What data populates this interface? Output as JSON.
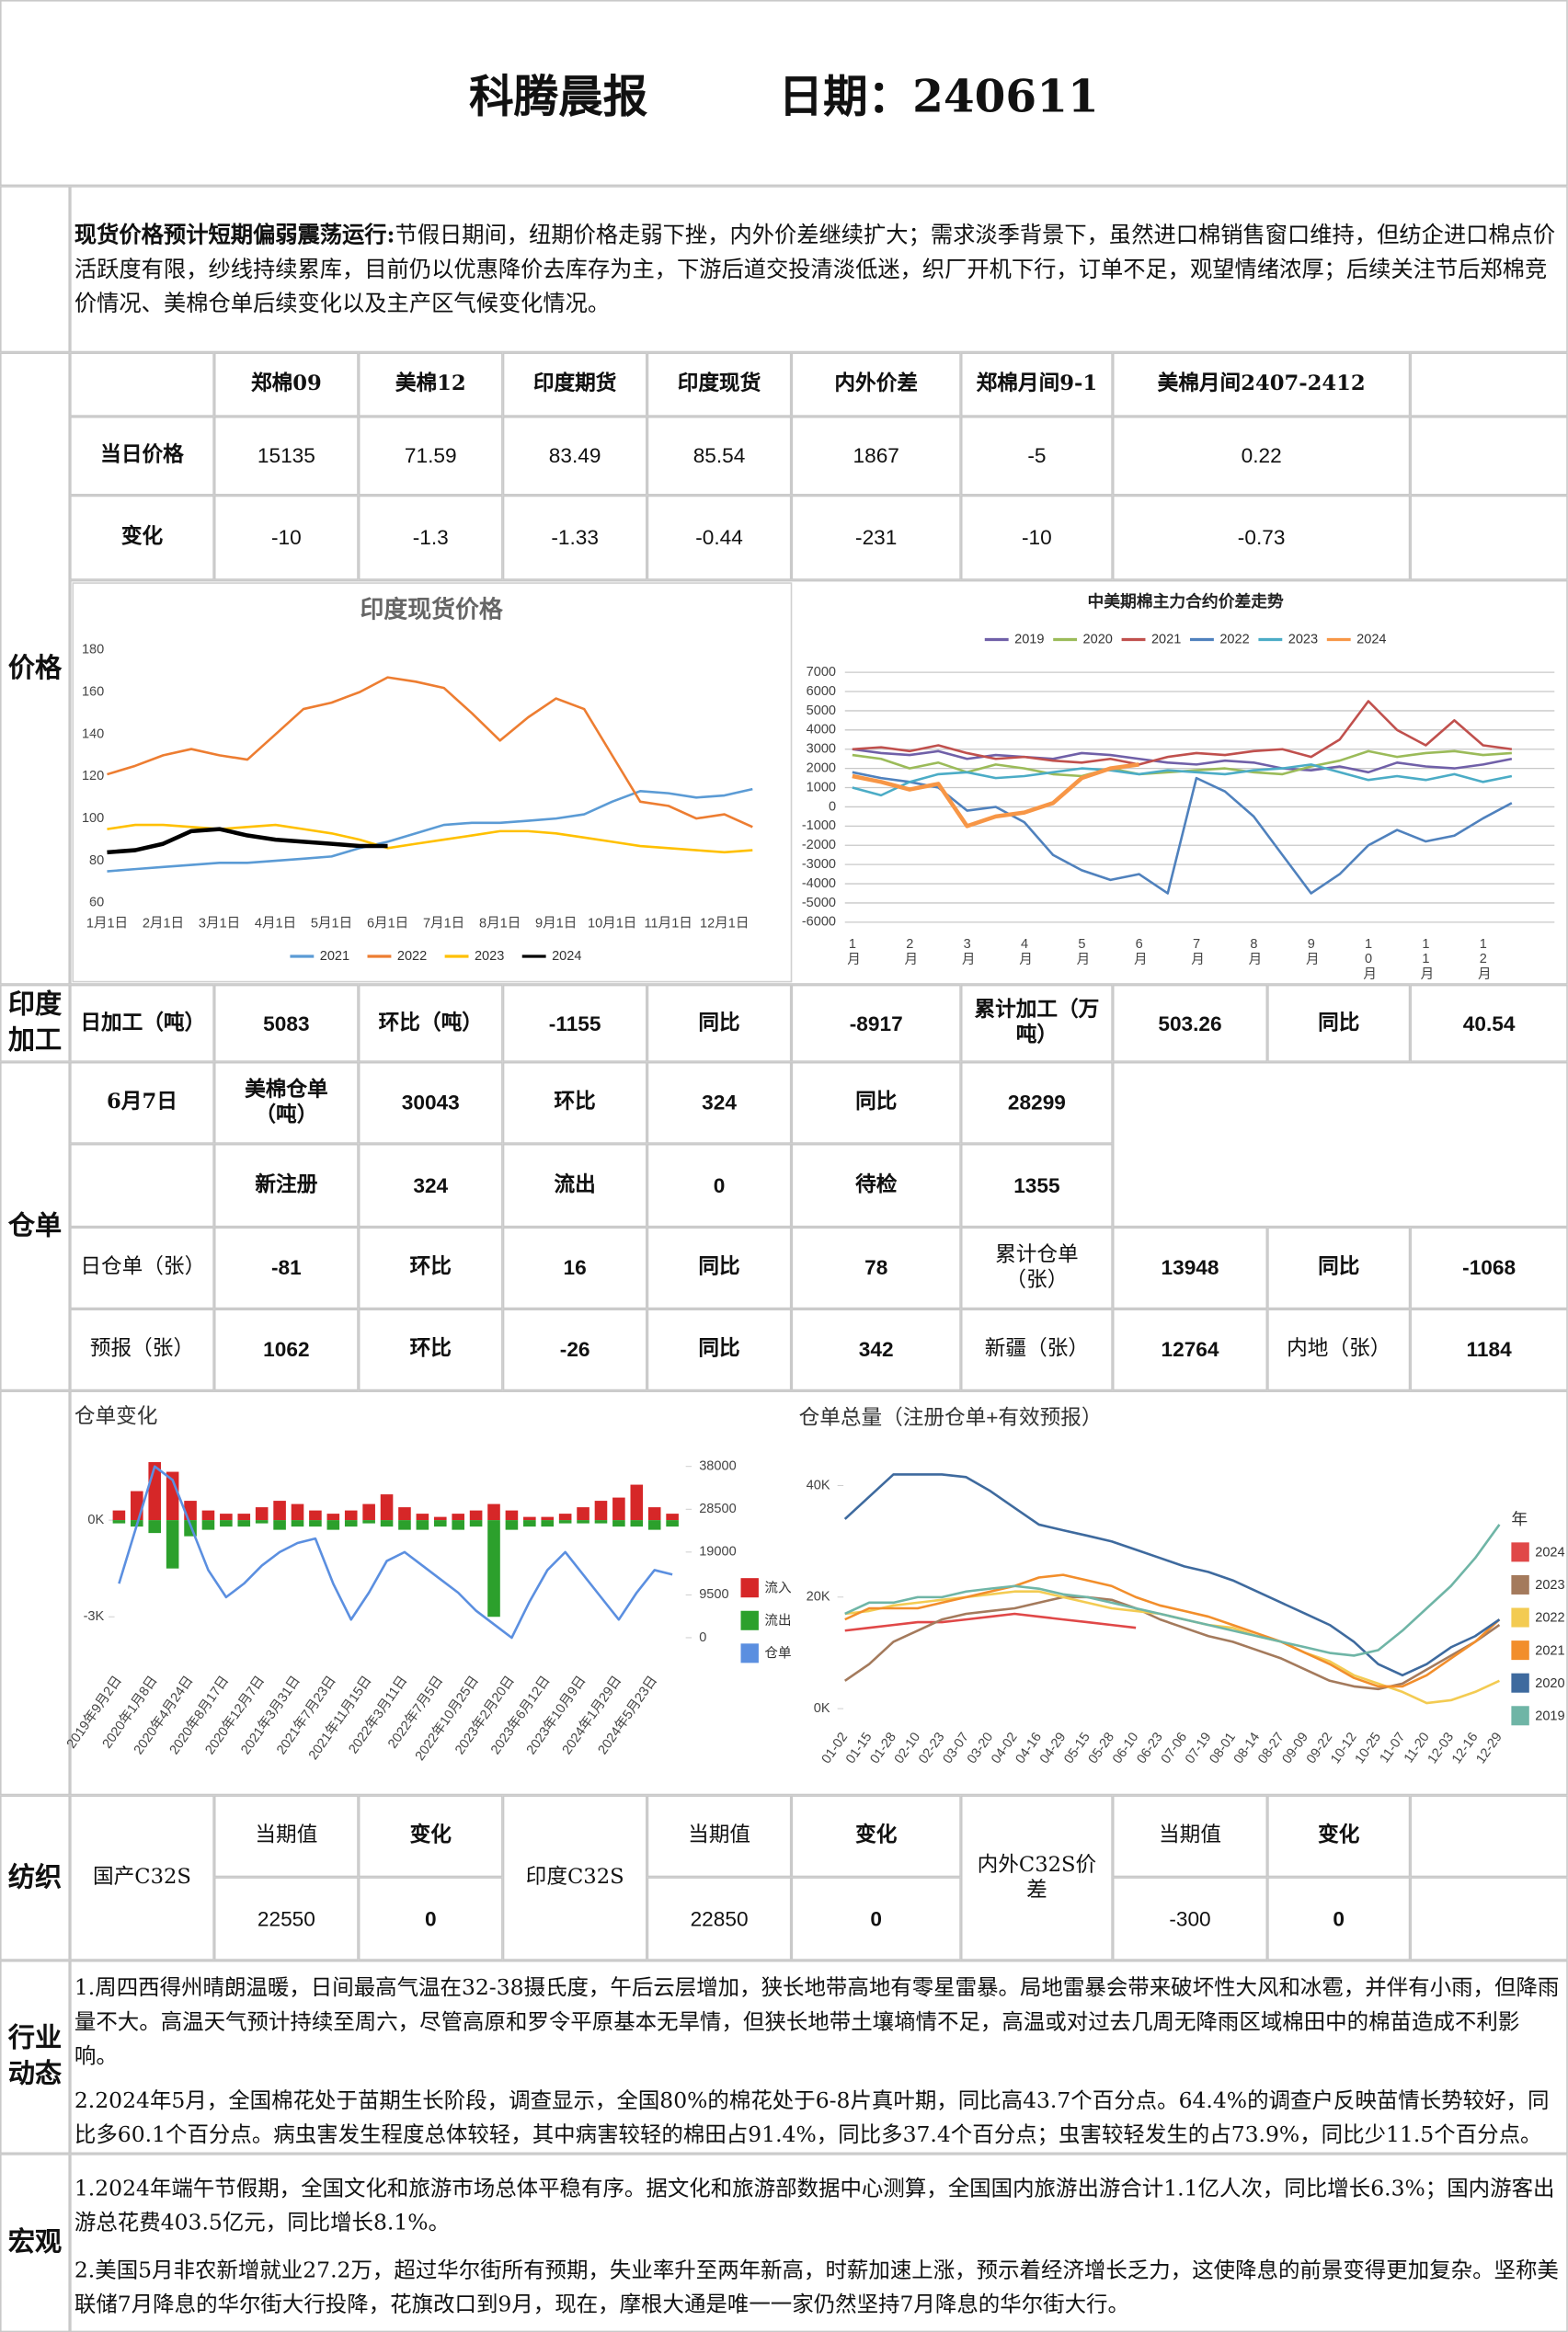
{
  "header": {
    "title": "科腾晨报",
    "date_label": "日期：",
    "date": "240611"
  },
  "summary": {
    "lead": "现货价格预计短期偏弱震荡运行:",
    "text": "节假日期间，纽期价格走弱下挫，内外价差继续扩大；需求淡季背景下，虽然进口棉销售窗口维持，但纺企进口棉点价活跃度有限，纱线持续累库，目前仍以优惠降价去库存为主，下游后道交投清淡低迷，织厂开机下行，订单不足，观望情绪浓厚；后续关注节后郑棉竞价情况、美棉仓单后续变化以及主产区气候变化情况。"
  },
  "sections": {
    "price": "价格",
    "india": "印度加工",
    "warehouse": "仓单",
    "textile": "纺织",
    "industry": "行业动态",
    "macro": "宏观"
  },
  "price_table": {
    "headers": [
      "郑棉09",
      "美棉12",
      "印度期货",
      "印度现货",
      "内外价差",
      "郑棉月间9-1",
      "美棉月间2407-2412"
    ],
    "row_labels": [
      "当日价格",
      "变化"
    ],
    "current": [
      15135,
      71.59,
      83.49,
      85.54,
      1867,
      -5,
      0.22
    ],
    "change": [
      -10,
      -1.3,
      -1.33,
      -0.44,
      -231,
      -10,
      -0.73
    ]
  },
  "india_processing": {
    "cells": [
      [
        "日加工（吨）",
        5083
      ],
      [
        "环比（吨）",
        -1155
      ],
      [
        "同比",
        -8917
      ],
      [
        "累计加工（万吨）",
        503.26
      ],
      [
        "同比",
        40.54
      ]
    ]
  },
  "warehouse": {
    "rows": [
      [
        "6月7日",
        "美棉仓单（吨）",
        30043,
        "环比",
        324,
        "同比",
        28299
      ],
      [
        "新注册",
        324,
        "流出",
        0,
        "待检",
        1355
      ],
      [
        "日仓单（张）",
        -81,
        "环比",
        16,
        "同比",
        78,
        "累计仓单（张）",
        13948,
        "同比",
        -1068
      ],
      [
        "预报（张）",
        1062,
        "环比",
        -26,
        "同比",
        342,
        "新疆（张）",
        12764,
        "内地（张）",
        1184
      ]
    ]
  },
  "textile": {
    "groups": [
      {
        "name": "国产C32S",
        "current_label": "当期值",
        "change_label": "变化",
        "current": 22550,
        "change": 0
      },
      {
        "name": "印度C32S",
        "current_label": "当期值",
        "change_label": "变化",
        "current": 22850,
        "change": 0
      },
      {
        "name": "内外C32S价差",
        "current_label": "当期值",
        "change_label": "变化",
        "current": -300,
        "change": 0
      }
    ]
  },
  "industry": {
    "paragraphs": [
      "1.周四西得州晴朗温暖，日间最高气温在32-38摄氏度，午后云层增加，狭长地带高地有零星雷暴。局地雷暴会带来破坏性大风和冰雹，并伴有小雨，但降雨量不大。高温天气预计持续至周六，尽管高原和罗令平原基本无旱情，但狭长地带土壤墒情不足，高温或对过去几周无降雨区域棉田中的棉苗造成不利影响。",
      "2.2024年5月，全国棉花处于苗期生长阶段，调查显示，全国80%的棉花处于6-8片真叶期，同比高43.7个百分点。64.4%的调查户反映苗情长势较好，同比多60.1个百分点。病虫害发生程度总体较轻，其中病害较轻的棉田占91.4%，同比多37.4个百分点；虫害较轻发生的占73.9%，同比少11.5个百分点。"
    ]
  },
  "macro": {
    "paragraphs": [
      "1.2024年端午节假期，全国文化和旅游市场总体平稳有序。据文化和旅游部数据中心测算，全国国内旅游出游合计1.1亿人次，同比增长6.3%；国内游客出游总花费403.5亿元，同比增长8.1%。",
      "2.美国5月非农新增就业27.2万，超过华尔街所有预期，失业率升至两年新高，时薪加速上涨，预示着经济增长乏力，这使降息的前景变得更加复杂。坚称美联储7月降息的华尔街大行投降，花旗改口到9月，现在，摩根大通是唯一一家仍然坚持7月降息的华尔街大行。"
    ]
  },
  "chart_data": [
    {
      "type": "line",
      "title": "印度现货价格",
      "legend": "bottom",
      "grid": false,
      "categories": [
        "1月1日",
        null,
        "2月1日",
        null,
        "3月1日",
        null,
        "4月1日",
        null,
        "5月1日",
        null,
        "6月1日",
        null,
        "7月1日",
        null,
        "8月1日",
        null,
        "9月1日",
        null,
        "10月1日",
        null,
        "11月1日",
        null,
        "12月1日",
        null
      ],
      "ylim": [
        60,
        180
      ],
      "yticks": [
        60,
        80,
        100,
        120,
        140,
        160,
        180
      ],
      "series": [
        {
          "name": "2021",
          "color": "#5b9bd5",
          "values": [
            75,
            76,
            77,
            78,
            79,
            79,
            80,
            81,
            82,
            86,
            89,
            93,
            97,
            98,
            98,
            99,
            100,
            102,
            108,
            113,
            112,
            110,
            111,
            114
          ]
        },
        {
          "name": "2022",
          "color": "#ed7d31",
          "values": [
            121,
            125,
            130,
            133,
            130,
            128,
            140,
            152,
            155,
            160,
            167,
            165,
            162,
            150,
            137,
            148,
            157,
            152,
            130,
            108,
            106,
            100,
            102,
            96
          ]
        },
        {
          "name": "2023",
          "color": "#ffc000",
          "values": [
            95,
            97,
            97,
            96,
            95,
            96,
            97,
            95,
            93,
            90,
            86,
            88,
            90,
            92,
            94,
            94,
            93,
            91,
            89,
            87,
            86,
            85,
            84,
            85
          ]
        },
        {
          "name": "2024",
          "color": "#000000",
          "values": [
            84,
            85,
            88,
            94,
            95,
            92,
            90,
            89,
            88,
            87,
            87,
            null,
            null,
            null,
            null,
            null,
            null,
            null,
            null,
            null,
            null,
            null,
            null,
            null
          ]
        }
      ]
    },
    {
      "type": "line",
      "title": "中美期棉主力合约价差走势",
      "legend": "top",
      "grid": true,
      "categories": [
        "1月",
        null,
        "2月",
        null,
        "3月",
        null,
        "4月",
        null,
        "5月",
        null,
        "6月",
        null,
        "7月",
        null,
        "8月",
        null,
        "9月",
        null,
        "10月",
        null,
        "11月",
        null,
        "12月",
        null
      ],
      "ylim": [
        -6000,
        7000
      ],
      "yticks": [
        -6000,
        -5000,
        -4000,
        -3000,
        -2000,
        -1000,
        0,
        1000,
        2000,
        3000,
        4000,
        5000,
        6000,
        7000
      ],
      "series": [
        {
          "name": "2019",
          "color": "#7060a8",
          "values": [
            3000,
            2800,
            2700,
            2900,
            2500,
            2700,
            2600,
            2500,
            2800,
            2700,
            2500,
            2300,
            2200,
            2400,
            2300,
            2000,
            1900,
            2100,
            1800,
            2300,
            2100,
            2000,
            2200,
            2500
          ]
        },
        {
          "name": "2020",
          "color": "#9bbb59",
          "values": [
            2700,
            2500,
            2000,
            2300,
            1800,
            2200,
            2000,
            1700,
            1600,
            2000,
            1700,
            1800,
            1900,
            2000,
            1800,
            1700,
            2100,
            2400,
            2900,
            2600,
            2800,
            2900,
            2700,
            2800
          ]
        },
        {
          "name": "2021",
          "color": "#c0504d",
          "values": [
            3000,
            3100,
            2900,
            3200,
            2800,
            2500,
            2600,
            2400,
            2300,
            2500,
            2200,
            2600,
            2800,
            2700,
            2900,
            3000,
            2600,
            3500,
            5500,
            4000,
            3200,
            4500,
            3200,
            3000
          ]
        },
        {
          "name": "2022",
          "color": "#4f81bd",
          "values": [
            1800,
            1500,
            1300,
            1000,
            -200,
            0,
            -800,
            -2500,
            -3300,
            -3800,
            -3500,
            -4500,
            1500,
            800,
            -500,
            -2500,
            -4500,
            -3500,
            -2000,
            -1200,
            -1800,
            -1500,
            -600,
            200
          ]
        },
        {
          "name": "2023",
          "color": "#4bacc6",
          "values": [
            1000,
            600,
            1300,
            1700,
            1800,
            1500,
            1600,
            1800,
            2000,
            1900,
            1700,
            1900,
            1800,
            1700,
            1900,
            2000,
            2200,
            1800,
            1400,
            1600,
            1400,
            1700,
            1300,
            1600
          ]
        },
        {
          "name": "2024",
          "color": "#f79646",
          "values": [
            1600,
            1300,
            900,
            1200,
            -1000,
            -500,
            -300,
            200,
            1500,
            2000,
            2200,
            null,
            null,
            null,
            null,
            null,
            null,
            null,
            null,
            null,
            null,
            null,
            null,
            null
          ]
        }
      ]
    },
    {
      "type": "combo",
      "title": "仓单变化",
      "legend": "right",
      "grid": false,
      "categories": [
        "2019年9月2日",
        null,
        "2020年1月8日",
        null,
        "2020年4月24日",
        null,
        "2020年8月17日",
        null,
        "2020年12月7日",
        null,
        "2021年3月31日",
        null,
        "2021年7月23日",
        null,
        "2021年11月15日",
        null,
        "2022年3月11日",
        null,
        "2022年7月5日",
        null,
        "2022年10月25日",
        null,
        "2023年2月20日",
        null,
        "2023年6月12日",
        null,
        "2023年10月9日",
        null,
        "2024年1月29日",
        null,
        "2024年5月23日",
        null
      ],
      "ylim": [
        -3830,
        2170
      ],
      "yticks": [
        {
          "value": -3000,
          "label": "-3K"
        },
        {
          "value": 0,
          "label": "0K"
        }
      ],
      "y2lim": [
        -1300,
        41600
      ],
      "y2ticks": [
        0,
        9500,
        19000,
        28500,
        38000
      ],
      "series": [
        {
          "name": "流入",
          "type": "bar",
          "color": "#d62728",
          "values": [
            300,
            900,
            1800,
            1500,
            600,
            300,
            200,
            200,
            400,
            600,
            500,
            300,
            200,
            300,
            500,
            800,
            400,
            200,
            100,
            200,
            300,
            500,
            300,
            100,
            100,
            200,
            400,
            600,
            700,
            1100,
            400,
            200
          ]
        },
        {
          "name": "流出",
          "type": "bar",
          "color": "#2ca02c",
          "values": [
            -100,
            -200,
            -400,
            -1500,
            -500,
            -300,
            -200,
            -200,
            -100,
            -300,
            -200,
            -200,
            -300,
            -200,
            -100,
            -200,
            -300,
            -300,
            -200,
            -300,
            -200,
            -3000,
            -300,
            -200,
            -200,
            -100,
            -100,
            -100,
            -200,
            -200,
            -300,
            -200
          ]
        },
        {
          "name": "仓单",
          "type": "line",
          "axis": "y2",
          "color": "#5b8fe0",
          "values": [
            12000,
            25000,
            38000,
            35000,
            25000,
            15000,
            9000,
            12000,
            16000,
            19000,
            21000,
            22000,
            12000,
            4000,
            10000,
            17000,
            19000,
            16000,
            13000,
            10000,
            6000,
            3000,
            0,
            8000,
            15000,
            19000,
            14000,
            9000,
            4000,
            10000,
            15000,
            14000
          ]
        }
      ]
    },
    {
      "type": "line",
      "title": "仓单总量（注册仓单+有效预报）",
      "legend": "right",
      "legend_title": "年",
      "grid": false,
      "categories": [
        "01-02",
        "01-15",
        "01-28",
        "02-10",
        "02-23",
        "03-07",
        "03-20",
        "04-02",
        "04-16",
        "04-29",
        "05-15",
        "05-28",
        "06-10",
        "06-23",
        "07-06",
        "07-19",
        "08-01",
        "08-14",
        "08-27",
        "09-09",
        "09-22",
        "10-12",
        "10-25",
        "11-07",
        "11-20",
        "12-03",
        "12-16",
        "12-29"
      ],
      "ylim": [
        -3000,
        45000
      ],
      "yticks": [
        {
          "value": 0,
          "label": "0K"
        },
        {
          "value": 20000,
          "label": "20K"
        },
        {
          "value": 40000,
          "label": "40K"
        }
      ],
      "series": [
        {
          "name": "2024",
          "color": "#e04848",
          "values": [
            14000,
            14500,
            15000,
            15500,
            15500,
            16000,
            16500,
            17000,
            16500,
            16000,
            15500,
            15000,
            14500,
            null,
            null,
            null,
            null,
            null,
            null,
            null,
            null,
            null,
            null,
            null,
            null,
            null,
            null,
            null
          ]
        },
        {
          "name": "2023",
          "color": "#a47a5c",
          "values": [
            5000,
            8000,
            12000,
            14000,
            16000,
            17000,
            17500,
            18000,
            19000,
            20000,
            20000,
            19500,
            18000,
            16000,
            14500,
            13000,
            12000,
            10500,
            9000,
            7000,
            5000,
            4000,
            3500,
            4500,
            7000,
            9500,
            12000,
            15000
          ]
        },
        {
          "name": "2022",
          "color": "#f3cb52",
          "values": [
            17000,
            17500,
            18500,
            19000,
            19500,
            20000,
            20500,
            21000,
            21000,
            20000,
            19000,
            18000,
            17500,
            17000,
            16000,
            15000,
            14500,
            13000,
            12000,
            10000,
            8500,
            6000,
            4500,
            3000,
            1000,
            1500,
            3000,
            5000
          ]
        },
        {
          "name": "2021",
          "color": "#f28e2b",
          "values": [
            16000,
            18000,
            18000,
            18000,
            19000,
            20000,
            21000,
            22000,
            23500,
            24000,
            23000,
            22000,
            20000,
            18500,
            17500,
            16500,
            15000,
            13500,
            12000,
            10000,
            8000,
            5500,
            4000,
            4000,
            6000,
            9000,
            12000,
            16000
          ]
        },
        {
          "name": "2020",
          "color": "#3e6a9e",
          "values": [
            34000,
            38000,
            42000,
            42000,
            42000,
            41500,
            39000,
            36000,
            33000,
            32000,
            31000,
            30000,
            28500,
            27000,
            25500,
            24500,
            23000,
            21000,
            19000,
            17000,
            15000,
            12000,
            8000,
            6000,
            8000,
            11000,
            13000,
            16000
          ]
        },
        {
          "name": "2019",
          "color": "#6fb5a6",
          "values": [
            17000,
            19000,
            19000,
            20000,
            20000,
            21000,
            21500,
            22000,
            21500,
            20500,
            20000,
            19000,
            18000,
            17000,
            16000,
            15000,
            14000,
            13000,
            12000,
            11000,
            10000,
            9500,
            10500,
            14000,
            18000,
            22000,
            27000,
            33000
          ]
        }
      ]
    }
  ]
}
